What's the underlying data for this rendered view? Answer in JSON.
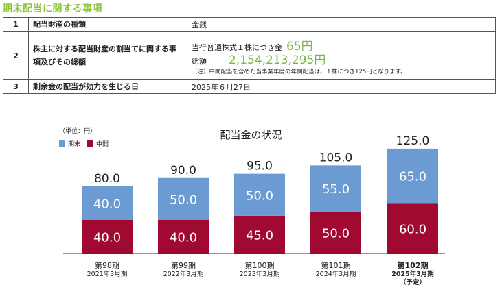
{
  "heading": "期末配当に関する事項",
  "table": {
    "rows": [
      {
        "num": "1",
        "label": "配当財産の種類",
        "value": "金銭"
      },
      {
        "num": "2",
        "label": "株主に対する配当財産の割当てに関する事項及びその総額",
        "per_share_prefix": "当行普通株式１株につき金",
        "per_share_amount": "65円",
        "total_label": "総額",
        "total_amount": "2,154,213,295円",
        "note": "（注）中間配当を含めた当事業年度の年間配当は、１株につき125円となります。"
      },
      {
        "num": "3",
        "label": "剰余金の配当が効力を生じる日",
        "value": "2025年６月27日"
      }
    ]
  },
  "chart_data": {
    "type": "bar",
    "stacked": true,
    "title": "配当金の状況",
    "unit_label": "（単位：円）",
    "legend_position": "top-left",
    "categories": [
      "第98期",
      "第99期",
      "第100期",
      "第101期",
      "第102期"
    ],
    "category_sub": [
      "2021年3月期",
      "2022年3月期",
      "2023年3月期",
      "2024年3月期",
      "2025年3月期"
    ],
    "category_note": [
      "",
      "",
      "",
      "",
      "（予定）"
    ],
    "series": [
      {
        "name": "中間",
        "color": "#a10a30",
        "values": [
          40.0,
          40.0,
          45.0,
          50.0,
          60.0
        ]
      },
      {
        "name": "期末",
        "color": "#6b9bd2",
        "values": [
          40.0,
          50.0,
          50.0,
          55.0,
          65.0
        ]
      }
    ],
    "totals": [
      80.0,
      90.0,
      95.0,
      105.0,
      125.0
    ],
    "ylim": [
      0,
      130
    ],
    "grid": false
  }
}
